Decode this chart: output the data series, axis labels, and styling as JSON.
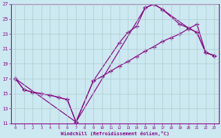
{
  "xlabel": "Windchill (Refroidissement éolien,°C)",
  "bg_color": "#cce8f0",
  "grid_color": "#aacccc",
  "line_color": "#880088",
  "xlim_min": -0.5,
  "xlim_max": 23.5,
  "ylim_min": 11,
  "ylim_max": 27,
  "xticks": [
    0,
    1,
    2,
    3,
    4,
    5,
    6,
    7,
    8,
    9,
    10,
    11,
    12,
    13,
    14,
    15,
    16,
    17,
    18,
    19,
    20,
    21,
    22,
    23
  ],
  "yticks": [
    11,
    13,
    15,
    17,
    19,
    21,
    23,
    25,
    27
  ],
  "line1_x": [
    0,
    1,
    2,
    3,
    4,
    5,
    6,
    7,
    9,
    10,
    11,
    12,
    13,
    14,
    15,
    16,
    17,
    18,
    19,
    20,
    21,
    22,
    23
  ],
  "line1_y": [
    17.0,
    15.5,
    15.2,
    15.0,
    14.8,
    14.5,
    14.2,
    11.2,
    16.7,
    17.3,
    18.0,
    18.7,
    19.3,
    20.0,
    20.7,
    21.3,
    22.0,
    22.5,
    23.0,
    23.7,
    24.3,
    20.5,
    20.1
  ],
  "line2_x": [
    0,
    1,
    2,
    3,
    4,
    5,
    6,
    7,
    9,
    12,
    13,
    14,
    15,
    16,
    17,
    20,
    21,
    22,
    23
  ],
  "line2_y": [
    17.0,
    15.5,
    15.2,
    15.0,
    14.8,
    14.5,
    14.2,
    11.2,
    16.7,
    21.8,
    23.2,
    24.0,
    26.5,
    27.0,
    26.3,
    23.8,
    23.2,
    20.5,
    20.1
  ],
  "line3_x": [
    0,
    7,
    15,
    16,
    17,
    19,
    20,
    21,
    22,
    23
  ],
  "line3_y": [
    17.0,
    11.2,
    26.5,
    27.0,
    26.3,
    24.3,
    23.8,
    23.2,
    20.5,
    20.1
  ]
}
